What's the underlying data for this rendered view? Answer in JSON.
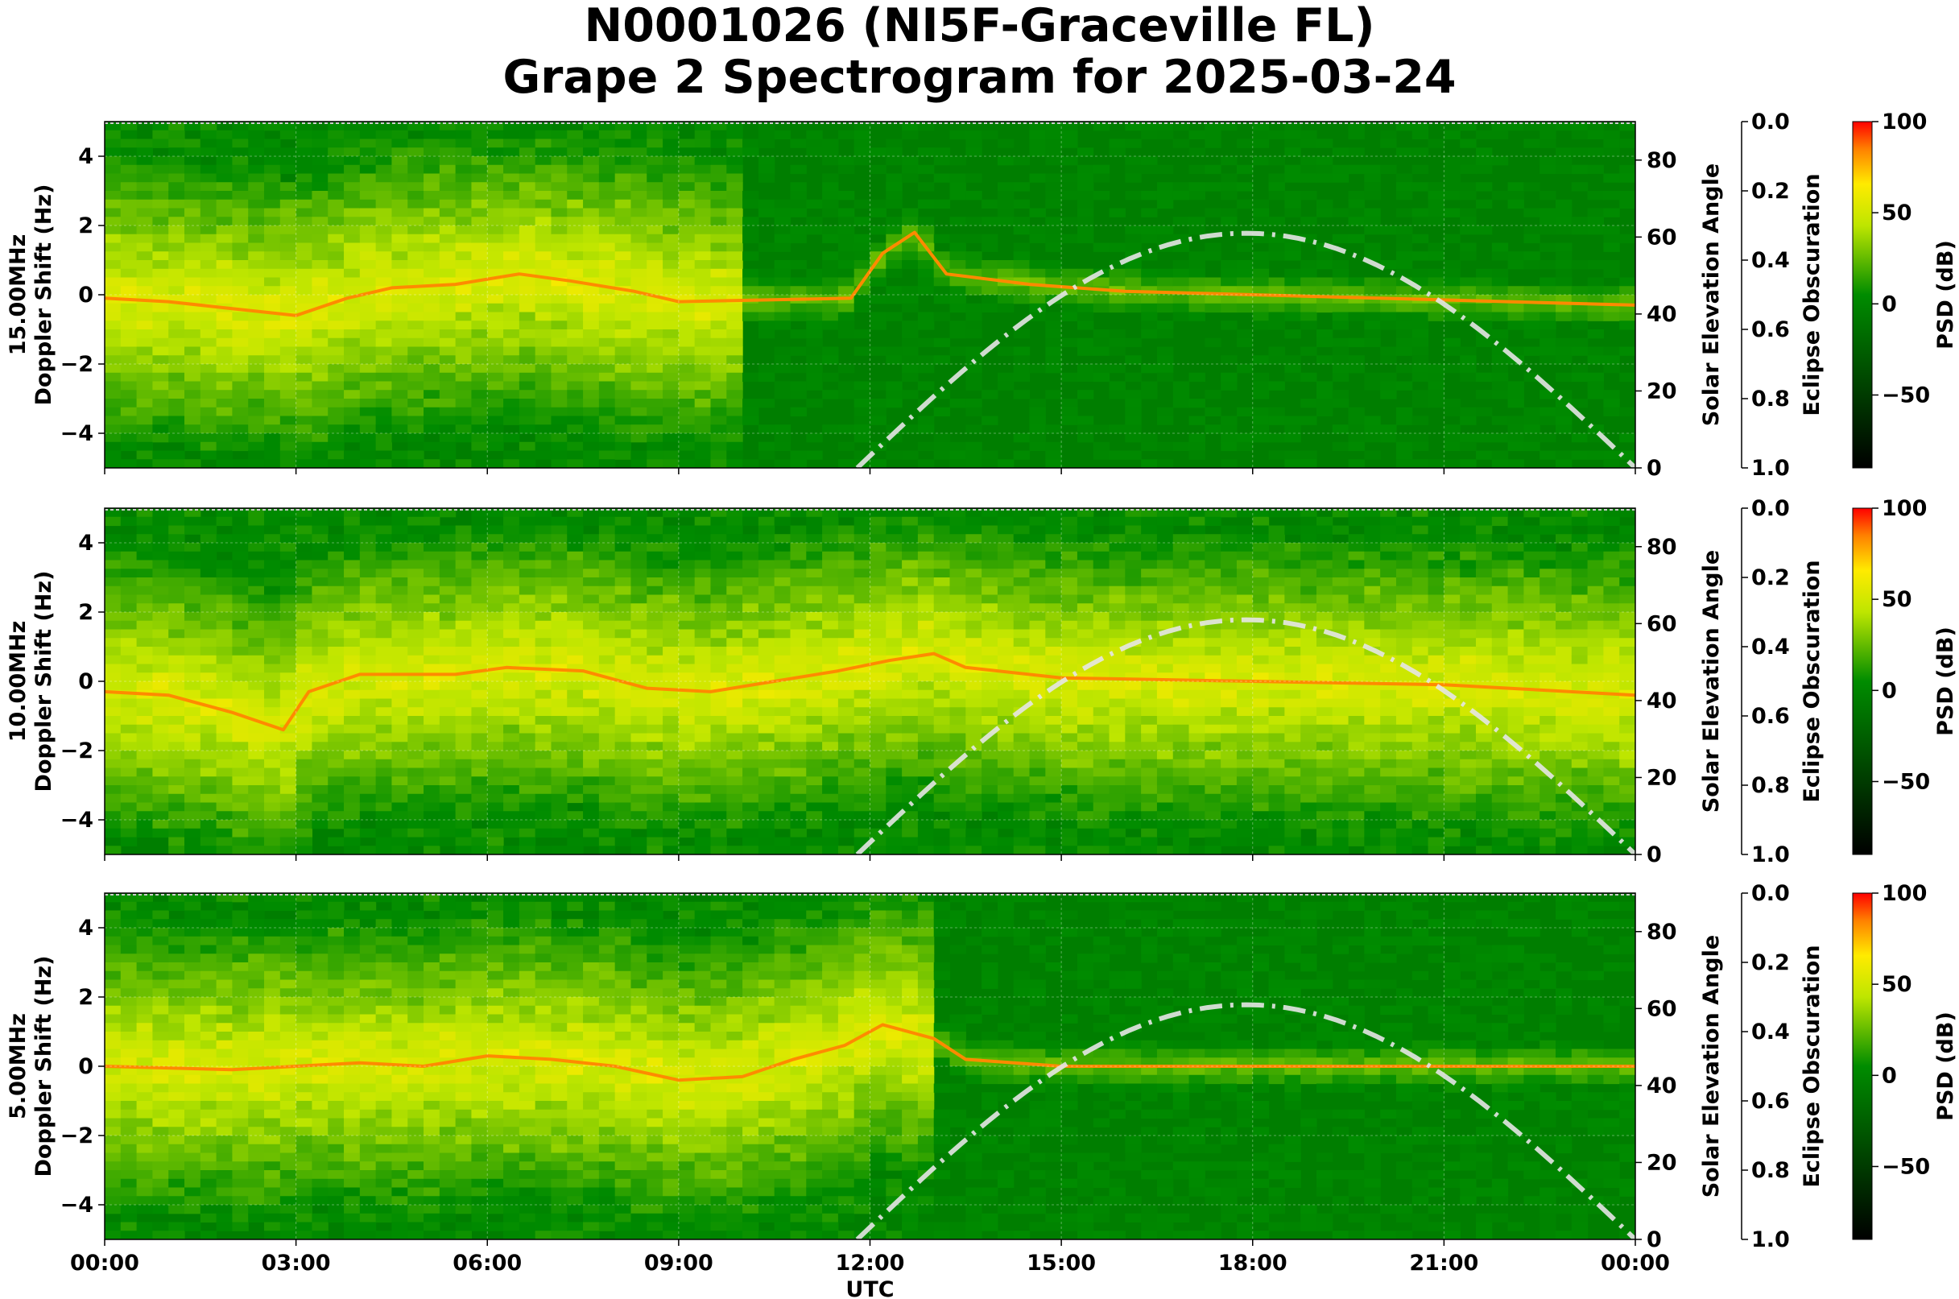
{
  "figure": {
    "title_line1": "N0001026 (NI5F-Graceville FL)",
    "title_line2": "Grape 2 Spectrogram for 2025-03-24"
  },
  "chart_data": [
    {
      "type": "heatmap",
      "panel": "15MHz",
      "ylabel_line1": "15.00MHz",
      "ylabel_line2": "Doppler Shift (Hz)",
      "y2label": "Solar Elevation Angle",
      "y3label": "Eclipse Obscuration",
      "cbar_label": "PSD (dB)",
      "xlim_hours": [
        0,
        24
      ],
      "ylim": [
        -5,
        5
      ],
      "y_ticks": [
        -4,
        -2,
        0,
        2,
        4
      ],
      "y2lim": [
        0,
        90
      ],
      "y2_ticks": [
        0,
        20,
        40,
        60,
        80
      ],
      "y3lim": [
        0.0,
        1.0
      ],
      "y3_ticks": [
        "0.0",
        "0.2",
        "0.4",
        "0.6",
        "0.8",
        "1.0"
      ],
      "cbar_range": [
        -90,
        100
      ],
      "cbar_ticks": [
        -50,
        0,
        50,
        100
      ],
      "activity_hours": [
        0,
        10
      ],
      "doppler_trace": [
        [
          0,
          -0.1
        ],
        [
          1,
          -0.2
        ],
        [
          2,
          -0.4
        ],
        [
          3,
          -0.6
        ],
        [
          3.8,
          -0.1
        ],
        [
          4.5,
          0.2
        ],
        [
          5.5,
          0.3
        ],
        [
          6.5,
          0.6
        ],
        [
          7.3,
          0.4
        ],
        [
          8.3,
          0.1
        ],
        [
          9,
          -0.2
        ],
        [
          11.7,
          -0.1
        ],
        [
          12.2,
          1.2
        ],
        [
          12.7,
          1.8
        ],
        [
          13.2,
          0.6
        ],
        [
          14.5,
          0.3
        ],
        [
          16,
          0.1
        ],
        [
          18,
          0.0
        ],
        [
          20,
          -0.1
        ],
        [
          22,
          -0.2
        ],
        [
          24,
          -0.3
        ]
      ],
      "solar_elevation": {
        "rise_hour": 11.8,
        "set_hour": 24.0,
        "peak_hour": 17.9,
        "peak_deg": 61
      }
    },
    {
      "type": "heatmap",
      "panel": "10MHz",
      "ylabel_line1": "10.00MHz",
      "ylabel_line2": "Doppler Shift (Hz)",
      "y2label": "Solar Elevation Angle",
      "y3label": "Eclipse Obscuration",
      "cbar_label": "PSD (dB)",
      "xlim_hours": [
        0,
        24
      ],
      "ylim": [
        -5,
        5
      ],
      "y_ticks": [
        -4,
        -2,
        0,
        2,
        4
      ],
      "y2lim": [
        0,
        90
      ],
      "y2_ticks": [
        0,
        20,
        40,
        60,
        80
      ],
      "y3lim": [
        0.0,
        1.0
      ],
      "y3_ticks": [
        "0.0",
        "0.2",
        "0.4",
        "0.6",
        "0.8",
        "1.0"
      ],
      "cbar_range": [
        -90,
        100
      ],
      "cbar_ticks": [
        -50,
        0,
        50,
        100
      ],
      "activity_hours": [
        0,
        24
      ],
      "doppler_trace": [
        [
          0,
          -0.3
        ],
        [
          1,
          -0.4
        ],
        [
          2,
          -0.9
        ],
        [
          2.8,
          -1.4
        ],
        [
          3.2,
          -0.3
        ],
        [
          4,
          0.2
        ],
        [
          5.5,
          0.2
        ],
        [
          6.3,
          0.4
        ],
        [
          7.5,
          0.3
        ],
        [
          8.5,
          -0.2
        ],
        [
          9.5,
          -0.3
        ],
        [
          10.5,
          0.0
        ],
        [
          11.5,
          0.3
        ],
        [
          12.3,
          0.6
        ],
        [
          13,
          0.8
        ],
        [
          13.5,
          0.4
        ],
        [
          15,
          0.1
        ],
        [
          18,
          0.0
        ],
        [
          21,
          -0.1
        ],
        [
          24,
          -0.4
        ]
      ],
      "solar_elevation": {
        "rise_hour": 11.8,
        "set_hour": 24.0,
        "peak_hour": 17.9,
        "peak_deg": 61
      }
    },
    {
      "type": "heatmap",
      "panel": "5MHz",
      "ylabel_line1": "5.00MHz",
      "ylabel_line2": "Doppler Shift (Hz)",
      "y2label": "Solar Elevation Angle",
      "y3label": "Eclipse Obscuration",
      "cbar_label": "PSD (dB)",
      "xlabel": "UTC",
      "xlim_hours": [
        0,
        24
      ],
      "x_ticks": [
        "00:00",
        "03:00",
        "06:00",
        "09:00",
        "12:00",
        "15:00",
        "18:00",
        "21:00",
        "00:00"
      ],
      "ylim": [
        -5,
        5
      ],
      "y_ticks": [
        -4,
        -2,
        0,
        2,
        4
      ],
      "y2lim": [
        0,
        90
      ],
      "y2_ticks": [
        0,
        20,
        40,
        60,
        80
      ],
      "y3lim": [
        0.0,
        1.0
      ],
      "y3_ticks": [
        "0.0",
        "0.2",
        "0.4",
        "0.6",
        "0.8",
        "1.0"
      ],
      "cbar_range": [
        -90,
        100
      ],
      "cbar_ticks": [
        -50,
        0,
        50,
        100
      ],
      "activity_hours": [
        0,
        13
      ],
      "doppler_trace": [
        [
          0,
          0.0
        ],
        [
          2,
          -0.1
        ],
        [
          3,
          0.0
        ],
        [
          4,
          0.1
        ],
        [
          5,
          0.0
        ],
        [
          6,
          0.3
        ],
        [
          7,
          0.2
        ],
        [
          8,
          0.0
        ],
        [
          9,
          -0.4
        ],
        [
          10,
          -0.3
        ],
        [
          10.8,
          0.2
        ],
        [
          11.6,
          0.6
        ],
        [
          12.2,
          1.2
        ],
        [
          13,
          0.8
        ],
        [
          13.5,
          0.2
        ],
        [
          15,
          0.0
        ],
        [
          24,
          0.0
        ]
      ],
      "solar_elevation": {
        "rise_hour": 11.8,
        "set_hour": 24.0,
        "peak_hour": 17.9,
        "peak_deg": 61
      }
    }
  ]
}
